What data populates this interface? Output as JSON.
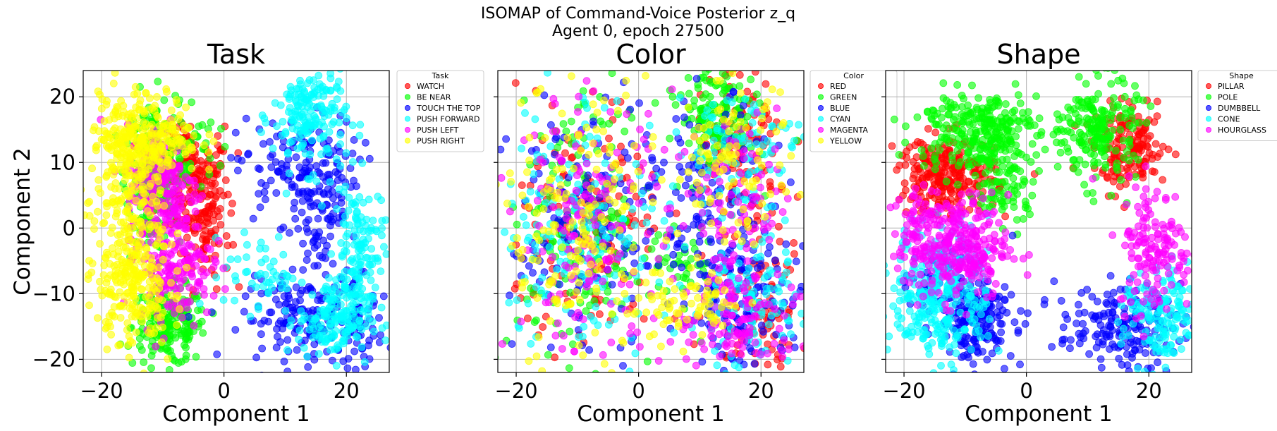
{
  "figure": {
    "title_line1": "ISOMAP of Command-Voice Posterior z_q",
    "title_line2": "Agent 0, epoch 27500"
  },
  "chart_data": [
    {
      "type": "scatter",
      "title": "Task",
      "xlabel": "Component 1",
      "ylabel": "Component 2",
      "xlim": [
        -23,
        27
      ],
      "ylim": [
        -22,
        24
      ],
      "xticks": [
        -20,
        0,
        20
      ],
      "yticks": [
        -20,
        -10,
        0,
        10,
        20
      ],
      "grid": true,
      "legend_position": "outside-upper-right",
      "legend_title": "Task",
      "series": [
        {
          "name": "WATCH",
          "color": "#ff0000",
          "regions": [
            [
              -5,
              6,
              3,
              4,
              160
            ],
            [
              -3,
              -1,
              2,
              4,
              60
            ],
            [
              -6,
              12,
              3,
              2,
              40
            ]
          ]
        },
        {
          "name": "BE NEAR",
          "color": "#00ff00",
          "regions": [
            [
              -9,
              -15,
              3,
              3,
              200
            ],
            [
              -12,
              8,
              2,
              6,
              180
            ],
            [
              -7,
              12,
              3,
              4,
              80
            ]
          ]
        },
        {
          "name": "TOUCH THE TOP",
          "color": "#0000ff",
          "regions": [
            [
              12,
              9,
              5,
              4,
              140
            ],
            [
              16,
              -1,
              3,
              6,
              80
            ],
            [
              13,
              -14,
              5,
              3,
              140
            ],
            [
              22,
              -15,
              2,
              3,
              50
            ]
          ]
        },
        {
          "name": "PUSH FORWARD",
          "color": "#00ffff",
          "regions": [
            [
              14,
              17,
              3,
              4,
              180
            ],
            [
              22,
              -3,
              2,
              5,
              130
            ],
            [
              18,
              -14,
              3,
              3,
              160
            ],
            [
              6,
              -7,
              3,
              3,
              50
            ]
          ]
        },
        {
          "name": "PUSH LEFT",
          "color": "#ff00ff",
          "regions": [
            [
              -10,
              6,
              3,
              5,
              200
            ],
            [
              -8,
              -6,
              3,
              4,
              160
            ]
          ]
        },
        {
          "name": "PUSH RIGHT",
          "color": "#ffff00",
          "regions": [
            [
              -16,
              3,
              3,
              9,
              300
            ],
            [
              -12,
              14,
              4,
              3,
              220
            ],
            [
              -15,
              -10,
              3,
              4,
              140
            ]
          ]
        }
      ]
    },
    {
      "type": "scatter",
      "title": "Color",
      "xlabel": "Component 1",
      "ylabel": "",
      "xlim": [
        -23,
        27
      ],
      "ylim": [
        -22,
        24
      ],
      "xticks": [
        -20,
        0,
        20
      ],
      "yticks": [
        -20,
        -10,
        0,
        10,
        20
      ],
      "grid": true,
      "legend_position": "outside-upper-right",
      "legend_title": "Color",
      "series": [
        {
          "name": "RED",
          "color": "#ff0000",
          "regions": [
            [
              -8,
              0,
              6,
              10,
              150
            ],
            [
              17,
              10,
              4,
              8,
              120
            ],
            [
              20,
              -12,
              4,
              5,
              80
            ]
          ]
        },
        {
          "name": "GREEN",
          "color": "#00ff00",
          "regions": [
            [
              -9,
              0,
              6,
              10,
              170
            ],
            [
              13,
              17,
              3,
              4,
              140
            ],
            [
              6,
              -5,
              4,
              4,
              40
            ]
          ]
        },
        {
          "name": "BLUE",
          "color": "#0000ff",
          "regions": [
            [
              -9,
              0,
              6,
              10,
              160
            ],
            [
              12,
              3,
              5,
              8,
              140
            ],
            [
              18,
              -12,
              5,
              5,
              120
            ]
          ]
        },
        {
          "name": "CYAN",
          "color": "#00ffff",
          "regions": [
            [
              -9,
              0,
              7,
              10,
              170
            ],
            [
              16,
              12,
              5,
              5,
              90
            ],
            [
              18,
              -12,
              5,
              5,
              110
            ]
          ]
        },
        {
          "name": "MAGENTA",
          "color": "#ff00ff",
          "regions": [
            [
              -8,
              0,
              6,
              10,
              160
            ],
            [
              16,
              4,
              5,
              8,
              100
            ],
            [
              16,
              -14,
              5,
              4,
              110
            ]
          ]
        },
        {
          "name": "YELLOW",
          "color": "#ffff00",
          "regions": [
            [
              -10,
              0,
              6,
              11,
              170
            ],
            [
              15,
              10,
              5,
              6,
              100
            ],
            [
              8,
              -12,
              5,
              3,
              80
            ]
          ]
        }
      ]
    },
    {
      "type": "scatter",
      "title": "Shape",
      "xlabel": "Component 1",
      "ylabel": "",
      "xlim": [
        -23,
        27
      ],
      "ylim": [
        -22,
        24
      ],
      "xticks": [
        -20,
        0,
        20
      ],
      "yticks": [
        -20,
        -10,
        0,
        10,
        20
      ],
      "grid": true,
      "legend_position": "outside-upper-right",
      "legend_title": "Shape",
      "series": [
        {
          "name": "PILLAR",
          "color": "#ff0000",
          "regions": [
            [
              -13,
              8,
              4,
              3,
              260
            ],
            [
              17,
              12,
              3,
              3,
              160
            ]
          ]
        },
        {
          "name": "POLE",
          "color": "#00ff00",
          "regions": [
            [
              -8,
              15,
              5,
              3,
              280
            ],
            [
              12,
              15,
              3,
              4,
              200
            ],
            [
              -4,
              6,
              3,
              3,
              80
            ]
          ]
        },
        {
          "name": "DUMBBELL",
          "color": "#0000ff",
          "regions": [
            [
              -8,
              -14,
              3,
              3,
              180
            ],
            [
              15,
              -15,
              5,
              3,
              180
            ],
            [
              -13,
              -8,
              3,
              3,
              60
            ]
          ]
        },
        {
          "name": "CONE",
          "color": "#00ffff",
          "regions": [
            [
              -14,
              -10,
              4,
              5,
              300
            ],
            [
              22,
              -14,
              3,
              4,
              150
            ]
          ]
        },
        {
          "name": "HOURGLASS",
          "color": "#ff00ff",
          "regions": [
            [
              -11,
              -3,
              4,
              4,
              280
            ],
            [
              21,
              -3,
              3,
              5,
              150
            ],
            [
              -18,
              1,
              2,
              3,
              60
            ]
          ]
        }
      ]
    }
  ]
}
